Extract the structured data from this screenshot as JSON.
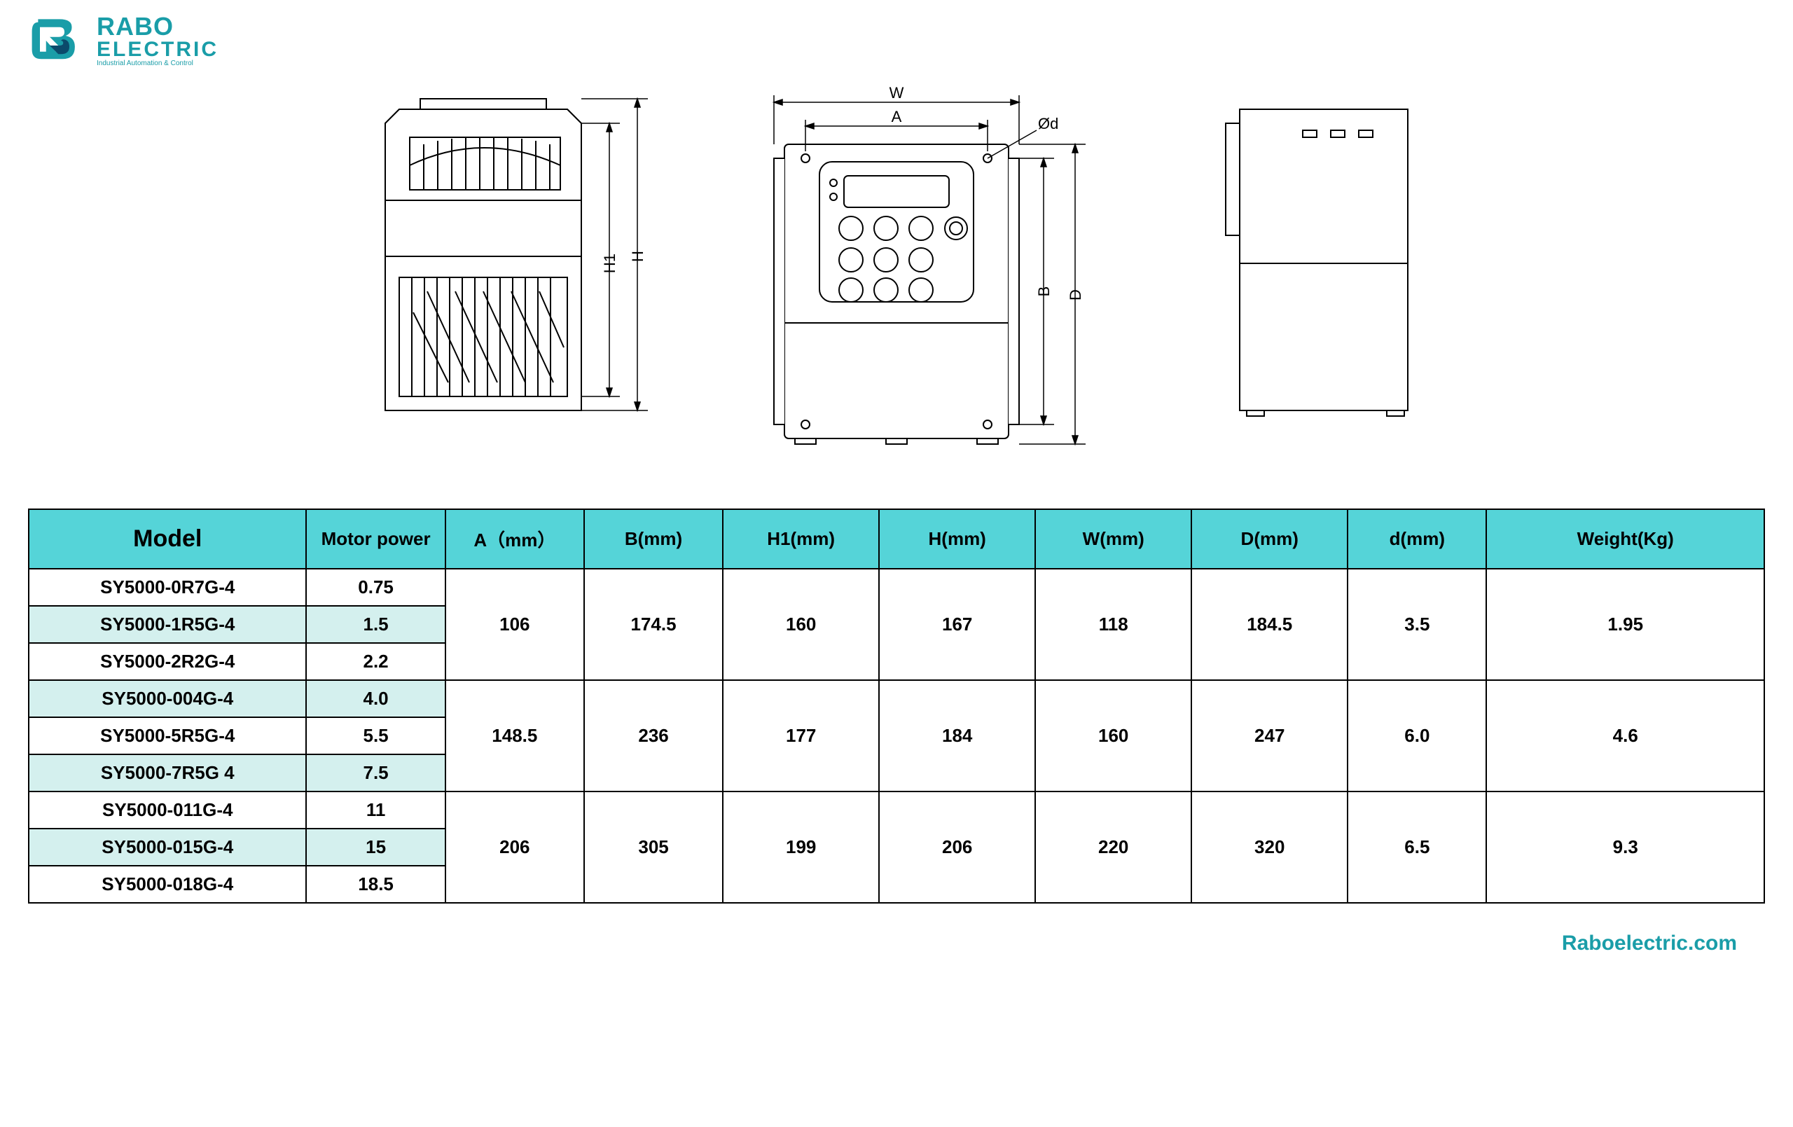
{
  "brand": {
    "line1": "RABO",
    "line2": "ELECTRIC",
    "tagline": "Industrial Automation & Control",
    "color": "#1a9da8",
    "logo_dark": "#0b4a6b"
  },
  "drawing_labels": {
    "H1": "H1",
    "H": "H",
    "W": "W",
    "A": "A",
    "B": "B",
    "D": "D",
    "phi_d": "Ød"
  },
  "table": {
    "header_bg": "#55d4d8",
    "alt_row_bg": "#d4f0ee",
    "border_color": "#000000",
    "columns": [
      "Model",
      "Motor power",
      "A（mm）",
      "B(mm)",
      "H1(mm)",
      "H(mm)",
      "W(mm)",
      "D(mm)",
      "d(mm)",
      "Weight(Kg)"
    ],
    "col_widths_pct": [
      16,
      8,
      8,
      8,
      9,
      9,
      9,
      9,
      8,
      16
    ],
    "groups": [
      {
        "rows": [
          {
            "model": "SY5000-0R7G-4",
            "power": "0.75",
            "alt": false
          },
          {
            "model": "SY5000-1R5G-4",
            "power": "1.5",
            "alt": true
          },
          {
            "model": "SY5000-2R2G-4",
            "power": "2.2",
            "alt": false
          }
        ],
        "dims": {
          "A": "106",
          "B": "174.5",
          "H1": "160",
          "H": "167",
          "W": "118",
          "D": "184.5",
          "d": "3.5",
          "Weight": "1.95"
        }
      },
      {
        "rows": [
          {
            "model": "SY5000-004G-4",
            "power": "4.0",
            "alt": true
          },
          {
            "model": "SY5000-5R5G-4",
            "power": "5.5",
            "alt": false
          },
          {
            "model": "SY5000-7R5G 4",
            "power": "7.5",
            "alt": true
          }
        ],
        "dims": {
          "A": "148.5",
          "B": "236",
          "H1": "177",
          "H": "184",
          "W": "160",
          "D": "247",
          "d": "6.0",
          "Weight": "4.6"
        }
      },
      {
        "rows": [
          {
            "model": "SY5000-011G-4",
            "power": "11",
            "alt": false
          },
          {
            "model": "SY5000-015G-4",
            "power": "15",
            "alt": true
          },
          {
            "model": "SY5000-018G-4",
            "power": "18.5",
            "alt": false
          }
        ],
        "dims": {
          "A": "206",
          "B": "305",
          "H1": "199",
          "H": "206",
          "W": "220",
          "D": "320",
          "d": "6.5",
          "Weight": "9.3"
        }
      }
    ]
  },
  "footer": "Raboelectric.com"
}
